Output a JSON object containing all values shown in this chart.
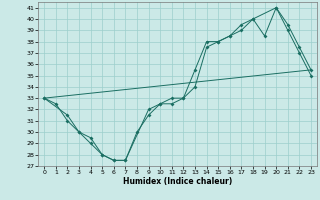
{
  "xlabel": "Humidex (Indice chaleur)",
  "xlim": [
    -0.5,
    23.5
  ],
  "ylim": [
    27,
    41.5
  ],
  "yticks": [
    27,
    28,
    29,
    30,
    31,
    32,
    33,
    34,
    35,
    36,
    37,
    38,
    39,
    40,
    41
  ],
  "xticks": [
    0,
    1,
    2,
    3,
    4,
    5,
    6,
    7,
    8,
    9,
    10,
    11,
    12,
    13,
    14,
    15,
    16,
    17,
    18,
    19,
    20,
    21,
    22,
    23
  ],
  "bg_color": "#cbe9e7",
  "line_color": "#1a6e62",
  "grid_color": "#9dcfcc",
  "line1_x": [
    0,
    1,
    2,
    3,
    4,
    5,
    6,
    7,
    8,
    9,
    10,
    11,
    12,
    13,
    14,
    15,
    16,
    17,
    18,
    19,
    20,
    21,
    22,
    23
  ],
  "line1_y": [
    33.0,
    32.5,
    31.0,
    30.0,
    29.0,
    28.0,
    27.5,
    27.5,
    30.0,
    31.5,
    32.5,
    32.5,
    33.0,
    35.5,
    38.0,
    38.0,
    38.5,
    39.5,
    40.0,
    38.5,
    41.0,
    39.0,
    37.0,
    35.0
  ],
  "line2_x": [
    0,
    2,
    3,
    4,
    5,
    6,
    7,
    9,
    10,
    11,
    12,
    13,
    14,
    15,
    16,
    17,
    18,
    20,
    21,
    22,
    23
  ],
  "line2_y": [
    33.0,
    31.5,
    30.0,
    29.5,
    28.0,
    27.5,
    27.5,
    32.0,
    32.5,
    33.0,
    33.0,
    34.0,
    37.5,
    38.0,
    38.5,
    39.0,
    40.0,
    41.0,
    39.5,
    37.5,
    35.5
  ],
  "line3_x": [
    0,
    23
  ],
  "line3_y": [
    33.0,
    35.5
  ]
}
